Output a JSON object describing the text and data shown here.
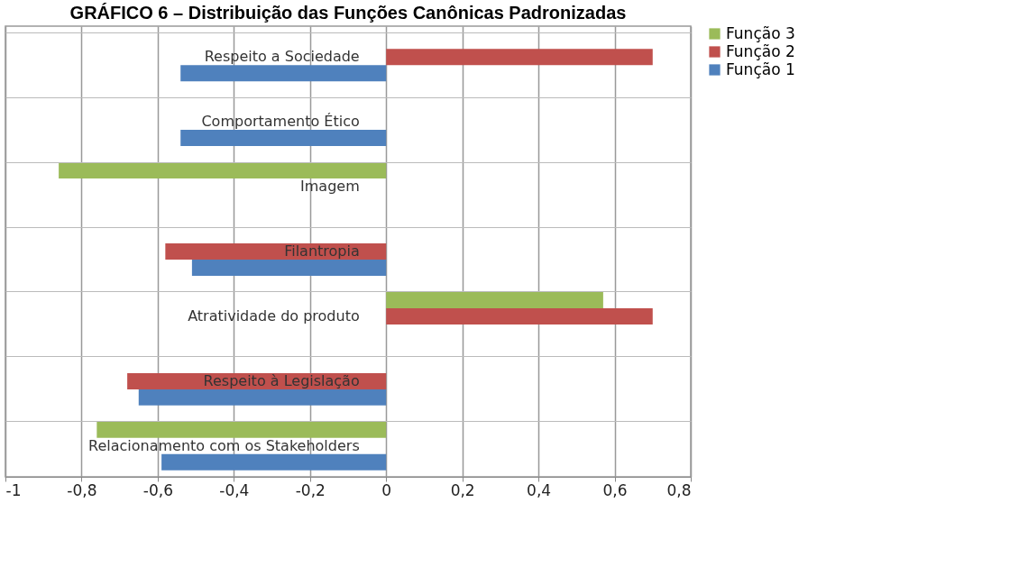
{
  "chart_data": {
    "type": "bar",
    "orientation": "horizontal",
    "title": "GRÁFICO 6 – Distribuição das Funções Canônicas Padronizadas",
    "categories": [
      "Respeito a Sociedade",
      "Comportamento Ético",
      "Imagem",
      "Filantropia",
      "Atratividade do produto",
      "Respeito à Legislação",
      "Relacionamento com os Stakeholders"
    ],
    "series": [
      {
        "name": "Função 3",
        "color": "#9bbb59",
        "values": [
          null,
          null,
          -0.86,
          null,
          0.57,
          null,
          -0.76
        ]
      },
      {
        "name": "Função 2",
        "color": "#c0504d",
        "values": [
          0.7,
          null,
          null,
          -0.58,
          0.7,
          -0.68,
          null
        ]
      },
      {
        "name": "Função 1",
        "color": "#4f81bd",
        "values": [
          -0.54,
          -0.54,
          null,
          -0.51,
          null,
          -0.65,
          -0.59
        ]
      }
    ],
    "xlim": [
      -1,
      0.8
    ],
    "xticks": [
      {
        "value": -1,
        "label": "-1"
      },
      {
        "value": -0.8,
        "label": "-0,8"
      },
      {
        "value": -0.6,
        "label": "-0,6"
      },
      {
        "value": -0.4,
        "label": "-0,4"
      },
      {
        "value": -0.2,
        "label": "-0,2"
      },
      {
        "value": 0,
        "label": "0"
      },
      {
        "value": 0.2,
        "label": "0,2"
      },
      {
        "value": 0.4,
        "label": "0,4"
      },
      {
        "value": 0.6,
        "label": "0,6"
      },
      {
        "value": 0.8,
        "label": "0,8"
      }
    ],
    "grid": true,
    "legend": "right"
  }
}
